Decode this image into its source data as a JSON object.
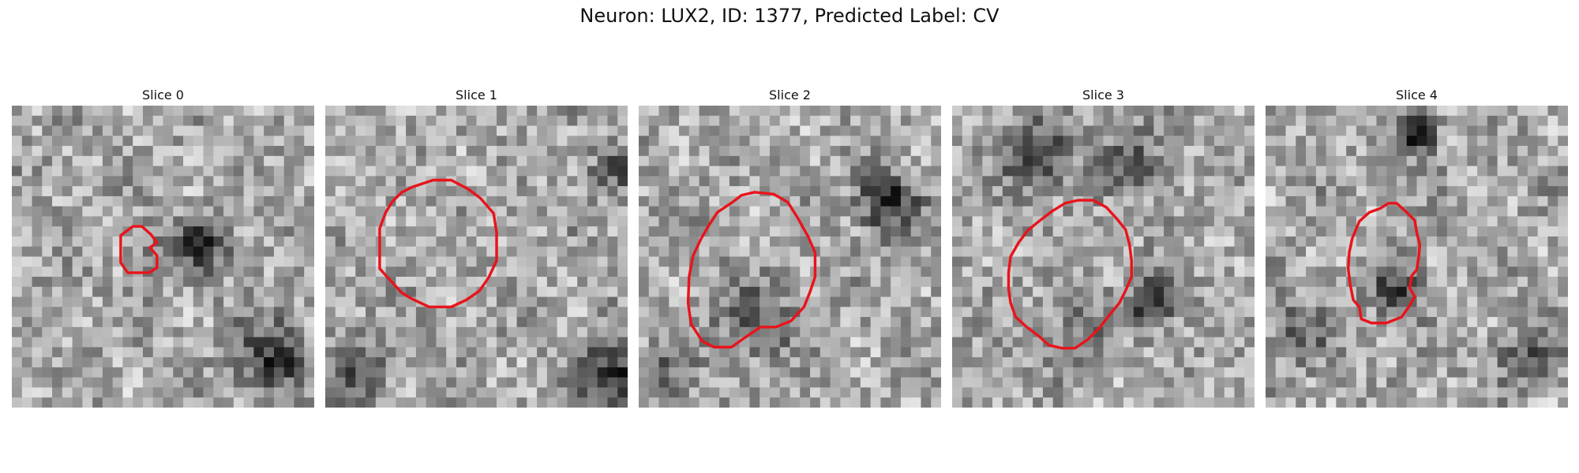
{
  "figure": {
    "title": "Neuron: LUX2, ID: 1377, Predicted Label: CV"
  },
  "panels": [
    {
      "title": "Slice 0",
      "seed": 11,
      "contour_color": "#e8141c",
      "contour": [
        [
          12,
          12
        ],
        [
          12.9,
          12
        ],
        [
          13.8,
          12.8
        ],
        [
          14.4,
          13.6
        ],
        [
          13.7,
          14.1
        ],
        [
          14.4,
          14.9
        ],
        [
          14.4,
          16.1
        ],
        [
          13.6,
          16.6
        ],
        [
          11.5,
          16.6
        ],
        [
          10.8,
          15.6
        ],
        [
          10.8,
          12.9
        ]
      ],
      "blobs": [
        [
          18.7,
          13.5,
          2.2,
          -0.5
        ],
        [
          25.5,
          24.5,
          3.5,
          -0.45
        ],
        [
          14.5,
          14,
          2.5,
          -0.2
        ]
      ]
    },
    {
      "title": "Slice 1",
      "seed": 23,
      "contour_color": "#e8141c",
      "contour": [
        [
          10.7,
          7.4
        ],
        [
          12.5,
          7.4
        ],
        [
          14.2,
          8.3
        ],
        [
          15.4,
          9.2
        ],
        [
          16.7,
          10.7
        ],
        [
          17.0,
          12.6
        ],
        [
          17.0,
          15.4
        ],
        [
          16.2,
          17.1
        ],
        [
          15.3,
          18.4
        ],
        [
          14.0,
          19.3
        ],
        [
          12.5,
          20.0
        ],
        [
          10.3,
          20.0
        ],
        [
          8.6,
          19.2
        ],
        [
          7.6,
          18.6
        ],
        [
          6.4,
          17.3
        ],
        [
          5.4,
          16.2
        ],
        [
          5.4,
          12.2
        ],
        [
          6.0,
          10.6
        ],
        [
          6.6,
          9.6
        ],
        [
          7.6,
          8.6
        ],
        [
          8.6,
          8.1
        ]
      ],
      "blobs": [
        [
          28.5,
          26.5,
          3.5,
          -0.55
        ],
        [
          2.5,
          26,
          3,
          -0.35
        ],
        [
          28,
          6,
          2.5,
          -0.25
        ]
      ]
    },
    {
      "title": "Slice 2",
      "seed": 37,
      "contour_color": "#e8141c",
      "contour": [
        [
          11.5,
          8.6
        ],
        [
          13.4,
          8.8
        ],
        [
          14.8,
          9.6
        ],
        [
          15.8,
          11.2
        ],
        [
          16.8,
          13.0
        ],
        [
          17.5,
          14.6
        ],
        [
          17.5,
          17.0
        ],
        [
          17.0,
          18.5
        ],
        [
          16.4,
          20.0
        ],
        [
          15.1,
          21.4
        ],
        [
          13.6,
          22.0
        ],
        [
          12.1,
          22.0
        ],
        [
          10.6,
          23.0
        ],
        [
          9.2,
          24.0
        ],
        [
          7.5,
          24.0
        ],
        [
          6.3,
          23.4
        ],
        [
          5.2,
          21.7
        ],
        [
          4.9,
          19.6
        ],
        [
          5.0,
          17.0
        ],
        [
          5.4,
          14.9
        ],
        [
          6.2,
          13.2
        ],
        [
          6.9,
          12.0
        ],
        [
          7.8,
          10.6
        ],
        [
          9.3,
          9.6
        ],
        [
          10.2,
          8.9
        ]
      ],
      "blobs": [
        [
          24,
          9,
          3,
          -0.5
        ],
        [
          11,
          21,
          4,
          -0.25
        ],
        [
          2,
          26,
          3,
          -0.2
        ]
      ]
    },
    {
      "title": "Slice 3",
      "seed": 53,
      "contour_color": "#e8141c",
      "contour": [
        [
          12.5,
          9.4
        ],
        [
          14.0,
          9.4
        ],
        [
          15.3,
          10.1
        ],
        [
          16.3,
          11.2
        ],
        [
          17.2,
          12.3
        ],
        [
          17.6,
          13.8
        ],
        [
          17.8,
          15.4
        ],
        [
          17.8,
          17.0
        ],
        [
          17.2,
          18.4
        ],
        [
          16.6,
          19.6
        ],
        [
          15.6,
          20.8
        ],
        [
          14.6,
          22.1
        ],
        [
          13.5,
          23.2
        ],
        [
          12.2,
          24.1
        ],
        [
          10.9,
          24.1
        ],
        [
          9.6,
          23.8
        ],
        [
          8.6,
          22.9
        ],
        [
          7.4,
          22.0
        ],
        [
          6.3,
          21.0
        ],
        [
          5.8,
          19.6
        ],
        [
          5.6,
          18.2
        ],
        [
          5.6,
          16.6
        ],
        [
          5.8,
          15.0
        ],
        [
          6.6,
          13.6
        ],
        [
          7.5,
          12.4
        ],
        [
          8.6,
          11.5
        ],
        [
          9.9,
          10.5
        ],
        [
          11.2,
          9.7
        ]
      ],
      "blobs": [
        [
          19.5,
          19,
          2.2,
          -0.6
        ],
        [
          8,
          4.5,
          3.5,
          -0.4
        ],
        [
          17.5,
          5,
          3,
          -0.3
        ],
        [
          12,
          22,
          3,
          -0.2
        ]
      ]
    },
    {
      "title": "Slice 4",
      "seed": 71,
      "contour_color": "#e8141c",
      "contour": [
        [
          12.2,
          9.7
        ],
        [
          13.0,
          9.7
        ],
        [
          14.0,
          10.6
        ],
        [
          14.8,
          11.4
        ],
        [
          15.0,
          12.6
        ],
        [
          15.3,
          13.8
        ],
        [
          15.2,
          15.0
        ],
        [
          15.0,
          16.3
        ],
        [
          14.5,
          16.9
        ],
        [
          14.3,
          18.1
        ],
        [
          14.8,
          19.0
        ],
        [
          14.2,
          20.0
        ],
        [
          13.5,
          21.0
        ],
        [
          12.0,
          21.6
        ],
        [
          10.5,
          21.6
        ],
        [
          9.5,
          21.2
        ],
        [
          9.3,
          20.0
        ],
        [
          8.7,
          19.3
        ],
        [
          8.4,
          17.8
        ],
        [
          8.2,
          16.2
        ],
        [
          8.3,
          14.6
        ],
        [
          8.6,
          13.2
        ],
        [
          9.3,
          11.5
        ],
        [
          10.3,
          10.6
        ],
        [
          11.4,
          10.2
        ]
      ],
      "blobs": [
        [
          14.5,
          2.5,
          2,
          -0.6
        ],
        [
          12.5,
          18,
          2.5,
          -0.4
        ],
        [
          25.5,
          24.5,
          3,
          -0.3
        ],
        [
          3,
          22,
          3,
          -0.25
        ]
      ]
    }
  ]
}
